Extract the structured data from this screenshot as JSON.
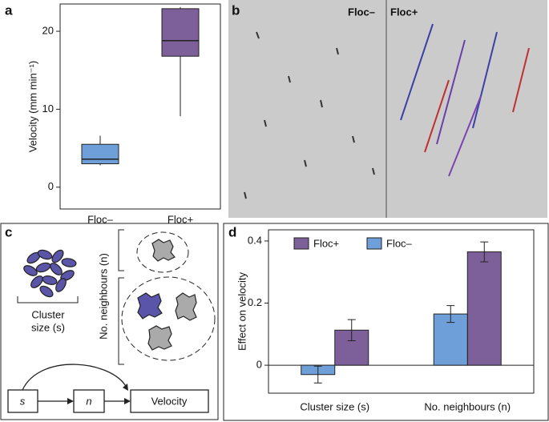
{
  "panel_labels": [
    "a",
    "b",
    "c",
    "d"
  ],
  "chart_data": [
    {
      "type": "box",
      "ylabel": "Velocity (mm min⁻¹)",
      "categories": [
        "Floc–",
        "Floc+"
      ],
      "colors": [
        "#6f9fd8",
        "#7d5f9a"
      ],
      "min": [
        2.8,
        9.1
      ],
      "q1": [
        3.0,
        16.8
      ],
      "median": [
        3.6,
        18.8
      ],
      "q3": [
        5.5,
        22.9
      ],
      "max": [
        6.6,
        23.1
      ],
      "ylim": [
        -2.8,
        23.5
      ],
      "yticks": [
        0,
        10,
        20
      ]
    },
    {
      "type": "bar",
      "ylabel": "Effect on velocity",
      "categories": [
        "Cluster size (s)",
        "No. neighbours (n)"
      ],
      "series": [
        {
          "name": "Floc+",
          "color": "#7d5f9a",
          "values": [
            0.113,
            0.365
          ],
          "errors": [
            0.034,
            0.032
          ]
        },
        {
          "name": "Floc–",
          "color": "#6f9fd8",
          "values": [
            -0.03,
            0.165
          ],
          "errors": [
            0.027,
            0.027
          ]
        }
      ],
      "ylim": [
        -0.09,
        0.436
      ],
      "yticks": [
        0,
        0.2,
        0.4
      ]
    }
  ],
  "panel_b": {
    "left_label": "Floc–",
    "right_label": "Floc+"
  },
  "panel_c": {
    "cluster_label": [
      "Cluster",
      "size (s)"
    ],
    "neighbours_label": "No. neighbours (n)",
    "flow": [
      "s",
      "n",
      "Velocity"
    ]
  }
}
